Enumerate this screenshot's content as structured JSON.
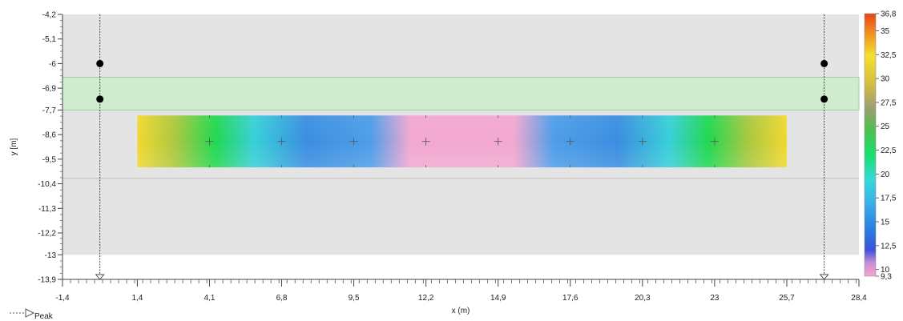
{
  "chart_data": {
    "type": "heatmap",
    "xlabel": "x (m)",
    "ylabel": "y [m]",
    "xlim": [
      -1.4,
      28.4
    ],
    "ylim": [
      -13.9,
      -4.2
    ],
    "x_ticks": [
      "-1,4",
      "1,4",
      "4,1",
      "6,8",
      "9,5",
      "12,2",
      "14,9",
      "17,6",
      "20,3",
      "23",
      "25,7",
      "28,4"
    ],
    "x_tick_values": [
      -1.4,
      1.4,
      4.1,
      6.8,
      9.5,
      12.2,
      14.9,
      17.6,
      20.3,
      23,
      25.7,
      28.4
    ],
    "y_ticks": [
      "-4,2",
      "-5,1",
      "-6",
      "-6,9",
      "-7,7",
      "-8,6",
      "-9,5",
      "-10,4",
      "-11,3",
      "-12,2",
      "-13",
      "-13,9"
    ],
    "y_tick_values": [
      -4.2,
      -5.1,
      -6.0,
      -6.9,
      -7.7,
      -8.6,
      -9.5,
      -10.4,
      -11.3,
      -12.2,
      -13.0,
      -13.9
    ],
    "colorbar": {
      "labels": [
        "36,8",
        "35",
        "32,5",
        "30",
        "27,5",
        "25",
        "22,5",
        "20",
        "17,5",
        "15",
        "12,5",
        "10",
        "9,3"
      ],
      "values": [
        36.8,
        35,
        32.5,
        30,
        27.5,
        25,
        22.5,
        20,
        17.5,
        15,
        12.5,
        10,
        9.3
      ],
      "colors": [
        "#e8431c",
        "#f0a020",
        "#f2e030",
        "#d8d040",
        "#9a9a70",
        "#4fbf4f",
        "#22d84a",
        "#18e870",
        "#38d8d8",
        "#3ab0e8",
        "#2b7ee0",
        "#3a52d8",
        "#f5a6cc"
      ]
    },
    "regions": {
      "grey_band_y": [
        -13.0,
        -4.2
      ],
      "green_band_y": [
        -7.7,
        -6.5
      ],
      "center_line_y": -10.2
    },
    "heatmap_slab": {
      "x_range": [
        1.4,
        25.7
      ],
      "y_range": [
        -9.8,
        -7.9
      ],
      "min": 9.3,
      "max": 36.8
    },
    "measure_points_x": [
      4.1,
      6.8,
      9.5,
      12.2,
      14.9,
      17.6,
      20.3,
      23
    ],
    "measure_points_y": -8.85,
    "supports": [
      {
        "x": 0.0,
        "dots_y": [
          -6.0,
          -7.3
        ]
      },
      {
        "x": 27.1,
        "dots_y": [
          -6.0,
          -7.3
        ]
      }
    ],
    "legend_entry": "Peak",
    "colors": {
      "grey_band": "#e4e4e4",
      "green_band": "#cfeccf",
      "green_band_border": "#9fd09f",
      "support_dot": "#000000"
    }
  }
}
